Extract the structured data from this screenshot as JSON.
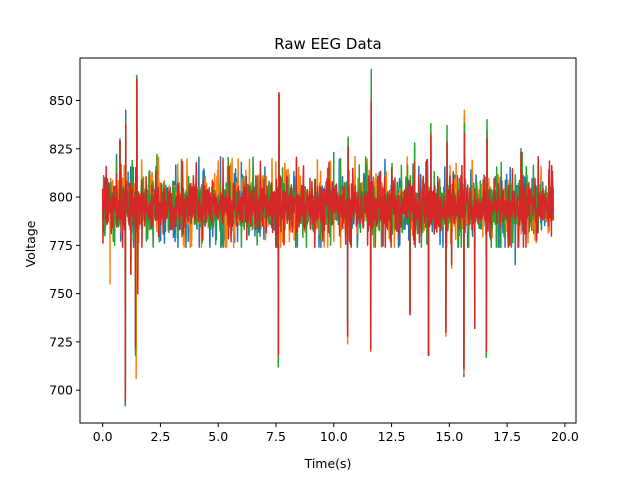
{
  "chart_data": {
    "type": "line",
    "title": "Raw EEG Data",
    "xlabel": "Time(s)",
    "ylabel": "Voltage",
    "xlim": [
      -0.98,
      20.48
    ],
    "ylim": [
      683,
      872
    ],
    "xticks": [
      0.0,
      2.5,
      5.0,
      7.5,
      10.0,
      12.5,
      15.0,
      17.5,
      20.0
    ],
    "xtick_labels": [
      "0.0",
      "2.5",
      "5.0",
      "7.5",
      "10.0",
      "12.5",
      "15.0",
      "17.5",
      "20.0"
    ],
    "yticks": [
      700,
      725,
      750,
      775,
      800,
      825,
      850
    ],
    "ytick_labels": [
      "700",
      "725",
      "750",
      "775",
      "800",
      "825",
      "850"
    ],
    "grid": false,
    "x_range": [
      0.0,
      19.5
    ],
    "baseline": 795,
    "noise_band": [
      782,
      812
    ],
    "series": [
      {
        "color": "#1f77b4",
        "spikes": [
          [
            0.6,
            822
          ],
          [
            0.75,
            830
          ],
          [
            0.98,
            692
          ],
          [
            1.0,
            845
          ],
          [
            1.22,
            768
          ],
          [
            1.42,
            750
          ],
          [
            1.48,
            862
          ],
          [
            1.52,
            756
          ],
          [
            6.0,
            818
          ],
          [
            7.6,
            718
          ],
          [
            7.63,
            853
          ],
          [
            10.6,
            733
          ],
          [
            10.62,
            827
          ],
          [
            11.6,
            722
          ],
          [
            11.62,
            852
          ],
          [
            13.3,
            740
          ],
          [
            13.5,
            826
          ],
          [
            14.1,
            718
          ],
          [
            14.2,
            832
          ],
          [
            14.85,
            730
          ],
          [
            14.9,
            825
          ],
          [
            15.1,
            775
          ],
          [
            15.63,
            707
          ],
          [
            15.65,
            842
          ],
          [
            16.1,
            732
          ],
          [
            16.6,
            722
          ],
          [
            16.63,
            835
          ],
          [
            17.85,
            765
          ],
          [
            18.1,
            825
          ]
        ]
      },
      {
        "color": "#ff7f0e",
        "spikes": [
          [
            0.32,
            755
          ],
          [
            0.75,
            829
          ],
          [
            0.98,
            697
          ],
          [
            1.0,
            839
          ],
          [
            1.22,
            760
          ],
          [
            1.45,
            706
          ],
          [
            1.48,
            859
          ],
          [
            5.6,
            820
          ],
          [
            7.6,
            714
          ],
          [
            7.63,
            853
          ],
          [
            10.6,
            724
          ],
          [
            10.62,
            830
          ],
          [
            11.6,
            720
          ],
          [
            11.62,
            850
          ],
          [
            13.3,
            740
          ],
          [
            13.5,
            820
          ],
          [
            14.1,
            718
          ],
          [
            14.2,
            834
          ],
          [
            14.85,
            728
          ],
          [
            14.9,
            829
          ],
          [
            15.1,
            763
          ],
          [
            15.63,
            709
          ],
          [
            15.65,
            845
          ],
          [
            16.1,
            740
          ],
          [
            16.6,
            719
          ],
          [
            16.63,
            833
          ],
          [
            18.1,
            822
          ]
        ]
      },
      {
        "color": "#2ca02c",
        "spikes": [
          [
            0.6,
            818
          ],
          [
            0.75,
            829
          ],
          [
            0.98,
            697
          ],
          [
            1.0,
            841
          ],
          [
            1.22,
            766
          ],
          [
            1.42,
            718
          ],
          [
            1.48,
            863
          ],
          [
            1.52,
            755
          ],
          [
            2.35,
            822
          ],
          [
            7.6,
            712
          ],
          [
            7.63,
            853
          ],
          [
            10.0,
            823
          ],
          [
            10.6,
            735
          ],
          [
            10.62,
            831
          ],
          [
            11.6,
            722
          ],
          [
            11.62,
            866
          ],
          [
            13.3,
            742
          ],
          [
            13.5,
            828
          ],
          [
            14.1,
            718
          ],
          [
            14.2,
            838
          ],
          [
            14.85,
            733
          ],
          [
            14.9,
            837
          ],
          [
            15.1,
            767
          ],
          [
            15.63,
            712
          ],
          [
            15.65,
            838
          ],
          [
            16.1,
            735
          ],
          [
            16.6,
            717
          ],
          [
            16.63,
            840
          ],
          [
            18.15,
            823
          ]
        ]
      },
      {
        "color": "#d62728",
        "spikes": [
          [
            0.6,
            812
          ],
          [
            0.75,
            829
          ],
          [
            0.98,
            695
          ],
          [
            1.0,
            838
          ],
          [
            1.22,
            760
          ],
          [
            1.42,
            722
          ],
          [
            1.48,
            861
          ],
          [
            1.52,
            750
          ],
          [
            7.6,
            718
          ],
          [
            7.63,
            854
          ],
          [
            10.6,
            728
          ],
          [
            10.62,
            826
          ],
          [
            11.6,
            721
          ],
          [
            11.62,
            849
          ],
          [
            13.3,
            739
          ],
          [
            13.5,
            818
          ],
          [
            14.1,
            718
          ],
          [
            14.2,
            832
          ],
          [
            14.85,
            730
          ],
          [
            14.9,
            828
          ],
          [
            15.1,
            765
          ],
          [
            15.63,
            711
          ],
          [
            15.65,
            833
          ],
          [
            16.1,
            732
          ],
          [
            16.6,
            720
          ],
          [
            16.63,
            830
          ],
          [
            18.1,
            823
          ]
        ]
      }
    ]
  }
}
